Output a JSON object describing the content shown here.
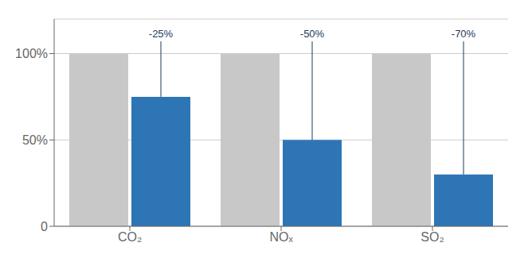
{
  "chart_data": {
    "type": "bar",
    "categories": [
      "CO₂",
      "NOₓ",
      "SO₂"
    ],
    "series": [
      {
        "color": "#c8c8c8",
        "values": [
          100,
          100,
          100
        ]
      },
      {
        "color": "#2e75b6",
        "values": [
          75,
          50,
          30
        ]
      }
    ],
    "annotations": [
      {
        "text": "-25%",
        "y": 108,
        "color": "#1a3a5c"
      },
      {
        "text": "-50%",
        "y": 108,
        "color": "#1a3a5c"
      },
      {
        "text": "-70%",
        "y": 108,
        "color": "#1a3a5c"
      }
    ],
    "ylim": [
      0,
      120
    ],
    "yticks": [
      0,
      {
        "value": 50,
        "label": "50%"
      },
      {
        "value": 100,
        "label": "100%"
      }
    ],
    "grid": true
  }
}
